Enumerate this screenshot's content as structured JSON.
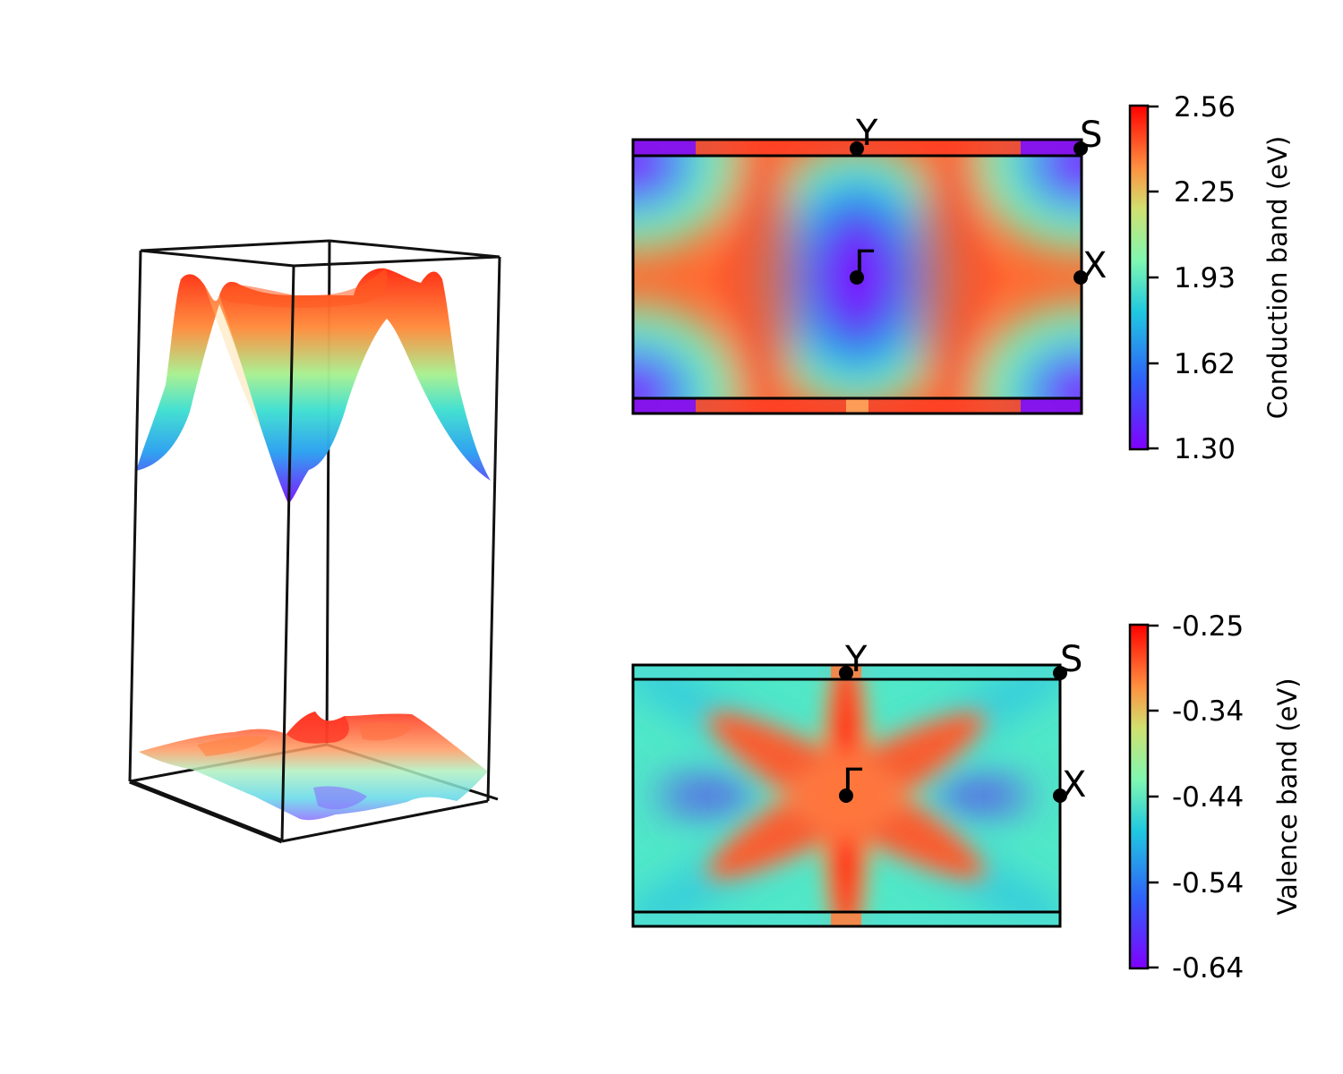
{
  "chart_data": [
    {
      "type": "surface3d",
      "panel": "left",
      "surfaces": [
        "conduction band",
        "valence band"
      ],
      "colormap": "rainbow"
    },
    {
      "type": "heatmap",
      "panel": "top-right",
      "band": "conduction",
      "colormap": "rainbow",
      "colorbar": {
        "label": "Conduction band (eV)",
        "range": [
          1.3,
          2.56
        ],
        "ticks": [
          "2.56",
          "2.25",
          "1.93",
          "1.62",
          "1.30"
        ]
      },
      "kpoints": [
        {
          "name": "Y",
          "label": "Y"
        },
        {
          "name": "S",
          "label": "S"
        },
        {
          "name": "X",
          "label": "X"
        },
        {
          "name": "Gamma",
          "label": "Γ"
        }
      ]
    },
    {
      "type": "heatmap",
      "panel": "bottom-right",
      "band": "valence",
      "colormap": "rainbow",
      "colorbar": {
        "label": "Valence band (eV)",
        "range": [
          -0.64,
          -0.25
        ],
        "ticks": [
          "-0.25",
          "-0.34",
          "-0.44",
          "-0.54",
          "-0.64"
        ]
      },
      "kpoints": [
        {
          "name": "Y",
          "label": "Y"
        },
        {
          "name": "S",
          "label": "S"
        },
        {
          "name": "X",
          "label": "X"
        },
        {
          "name": "Gamma",
          "label": "Γ"
        }
      ]
    }
  ]
}
